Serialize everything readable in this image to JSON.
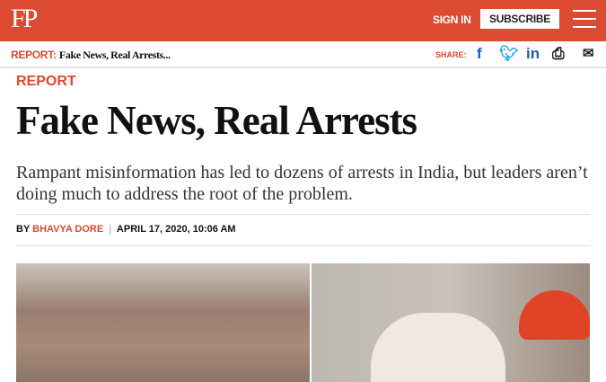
{
  "header": {
    "logo": "FP",
    "sign_in": "SIGN IN",
    "subscribe": "SUBSCRIBE"
  },
  "bar": {
    "kicker": "REPORT:",
    "title": "Fake News, Real Arrests...",
    "share": "SHARE:",
    "icons": [
      "facebook-icon",
      "twitter-icon",
      "linkedin-icon",
      "print-icon",
      "email-icon"
    ]
  },
  "article": {
    "section": "REPORT",
    "headline": "Fake News, Real Arrests",
    "dek": "Rampant misinformation has led to dozens of arrests in India, but leaders aren’t doing much to address the root of the problem.",
    "by": "BY",
    "author": "BHAVYA DORE",
    "date": "APRIL 17, 2020, 10:06 AM"
  },
  "colors": {
    "brand": "#db4a31",
    "link": "#1f5ea8"
  }
}
